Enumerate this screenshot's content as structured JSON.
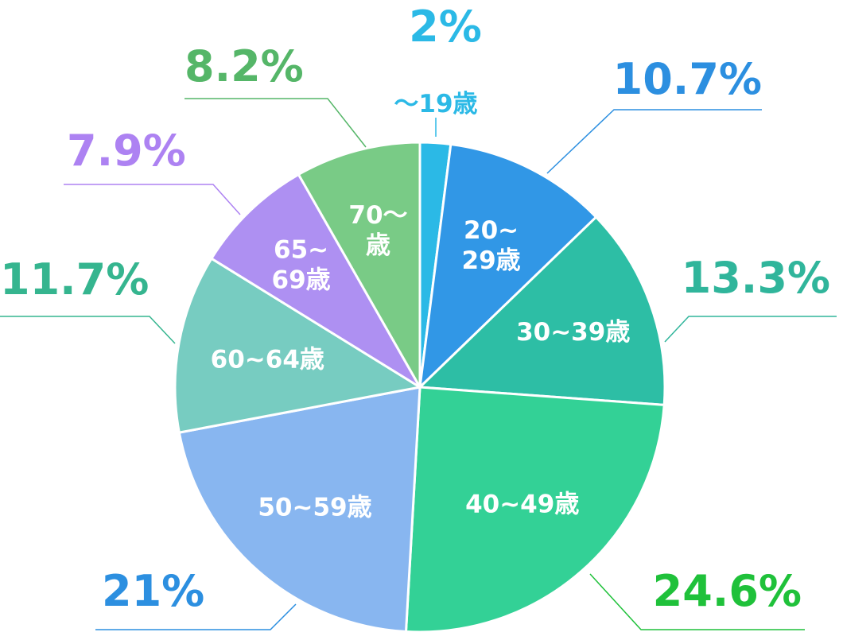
{
  "chart_data": {
    "type": "pie",
    "start_angle_deg": 0,
    "direction": "clockwise",
    "categories": [
      "〜19歳",
      "20~29歳",
      "30~39歳",
      "40~49歳",
      "50~59歳",
      "60~64歳",
      "65~69歳",
      "70〜歳"
    ],
    "slice_labels": [
      [
        "〜19歳"
      ],
      [
        "20~",
        "29歳"
      ],
      [
        "30~39歳"
      ],
      [
        "40~49歳"
      ],
      [
        "50~59歳"
      ],
      [
        "60~64歳"
      ],
      [
        "65~",
        "69歳"
      ],
      [
        "70〜",
        "歳"
      ]
    ],
    "values": [
      2,
      10.7,
      13.3,
      24.6,
      21,
      11.7,
      7.9,
      8.2
    ],
    "value_labels": [
      "2%",
      "10.7%",
      "13.3%",
      "24.6%",
      "21%",
      "11.7%",
      "7.9%",
      "8.2%"
    ],
    "colors": [
      "#2bb9e6",
      "#3197e6",
      "#2dbea5",
      "#33d196",
      "#88b6f0",
      "#77ccc1",
      "#ae90f2",
      "#79cb86"
    ],
    "label_colors": [
      "#2bb9e6",
      "#2c8fe0",
      "#30b59b",
      "#1fc13a",
      "#2c8fe0",
      "#35b58f",
      "#ad82f2",
      "#55b668"
    ],
    "legend": "none"
  }
}
